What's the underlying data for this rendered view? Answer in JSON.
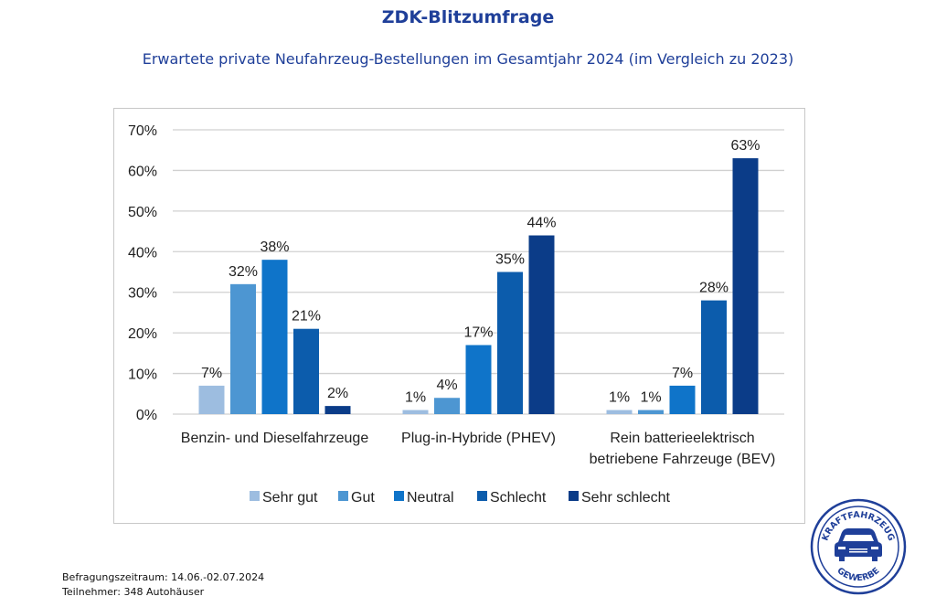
{
  "header": {
    "title": "ZDK-Blitzumfrage",
    "subtitle": "Erwartete private Neufahrzeug-Bestellungen im Gesamtjahr 2024 (im Vergleich zu 2023)"
  },
  "footer": {
    "period": "Befragungszeitraum: 14.06.-02.07.2024",
    "participants": "Teilnehmer: 348 Autohäuser"
  },
  "logo": {
    "top_text": "KRAFTFAHRZEUG",
    "bottom_text": "GEWERBE",
    "color": "#1f3f99"
  },
  "chart_data": {
    "type": "bar",
    "title": "Erwartete private Neufahrzeug-Bestellungen im Gesamtjahr 2024 (im Vergleich zu 2023)",
    "xlabel": "",
    "ylabel": "",
    "ylim": [
      0,
      70
    ],
    "yticks": [
      0,
      10,
      20,
      30,
      40,
      50,
      60,
      70
    ],
    "ytick_labels": [
      "0%",
      "10%",
      "20%",
      "30%",
      "40%",
      "50%",
      "60%",
      "70%"
    ],
    "grid": true,
    "legend_position": "bottom",
    "categories": [
      [
        "Benzin- und Dieselfahrzeuge"
      ],
      [
        "Plug-in-Hybride (PHEV)"
      ],
      [
        "Rein batterieelektrisch",
        "betriebene Fahrzeuge (BEV)"
      ]
    ],
    "series": [
      {
        "name": "Sehr gut",
        "color": "#9dbde0",
        "values": [
          7,
          1,
          1
        ]
      },
      {
        "name": "Gut",
        "color": "#4d96d2",
        "values": [
          32,
          4,
          1
        ]
      },
      {
        "name": "Neutral",
        "color": "#0f74c9",
        "values": [
          38,
          17,
          7
        ]
      },
      {
        "name": "Schlecht",
        "color": "#0c5cac",
        "values": [
          21,
          35,
          28
        ]
      },
      {
        "name": "Sehr schlecht",
        "color": "#0b3c88",
        "values": [
          2,
          44,
          63
        ]
      }
    ],
    "value_suffix": "%"
  }
}
